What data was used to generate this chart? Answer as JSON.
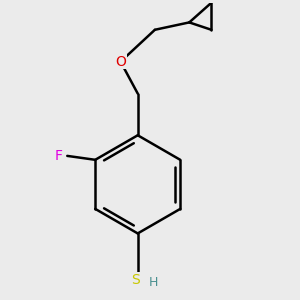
{
  "background_color": "#ebebeb",
  "line_color": "#000000",
  "bond_width": 1.8,
  "atom_labels": {
    "F": {
      "color": "#e000e0",
      "fontsize": 10
    },
    "O": {
      "color": "#e00000",
      "fontsize": 10
    },
    "S": {
      "color": "#c8c800",
      "fontsize": 10
    },
    "H": {
      "color": "#4a9090",
      "fontsize": 9
    }
  },
  "figsize": [
    3.0,
    3.0
  ],
  "dpi": 100
}
